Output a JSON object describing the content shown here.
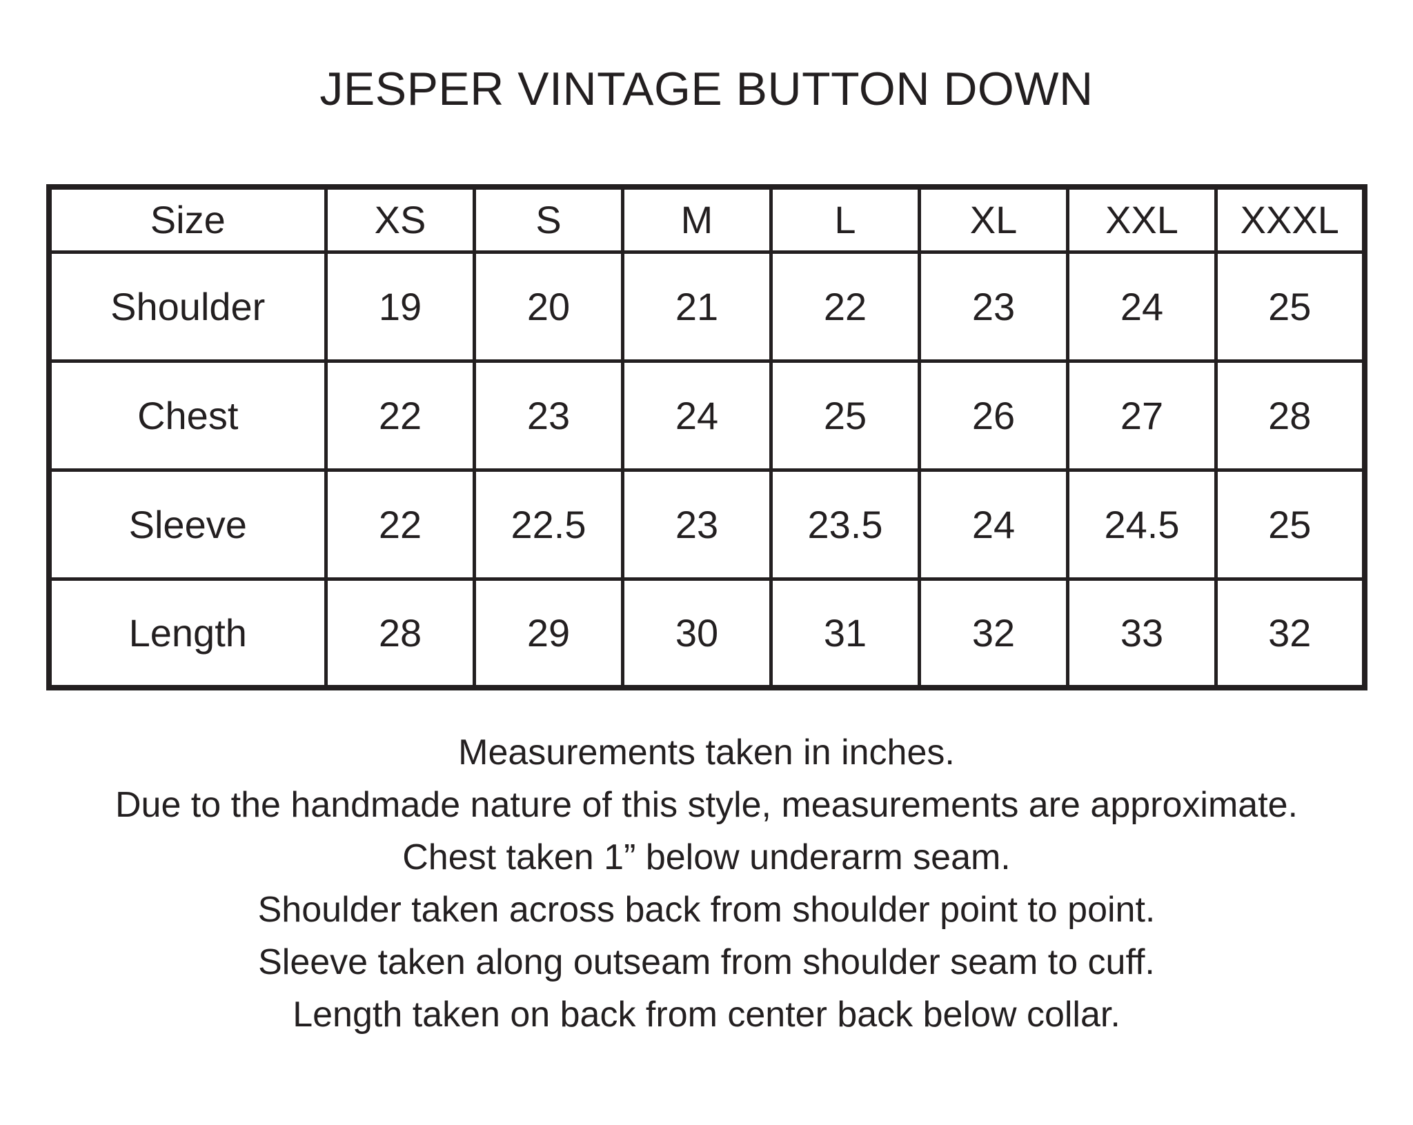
{
  "title": "JESPER VINTAGE BUTTON DOWN",
  "table": {
    "header": [
      "Size",
      "XS",
      "S",
      "M",
      "L",
      "XL",
      "XXL",
      "XXXL"
    ],
    "rows": [
      {
        "label": "Shoulder",
        "values": [
          "19",
          "20",
          "21",
          "22",
          "23",
          "24",
          "25"
        ]
      },
      {
        "label": "Chest",
        "values": [
          "22",
          "23",
          "24",
          "25",
          "26",
          "27",
          "28"
        ]
      },
      {
        "label": "Sleeve",
        "values": [
          "22",
          "22.5",
          "23",
          "23.5",
          "24",
          "24.5",
          "25"
        ]
      },
      {
        "label": "Length",
        "values": [
          "28",
          "29",
          "30",
          "31",
          "32",
          "33",
          "32"
        ]
      }
    ]
  },
  "notes": [
    "Measurements taken in inches.",
    "Due to the handmade nature of this style, measurements are approximate.",
    "Chest taken 1” below underarm seam.",
    "Shoulder taken across back from shoulder point to point.",
    "Sleeve taken along outseam from shoulder seam to cuff.",
    "Length taken on back from center back below collar."
  ],
  "colors": {
    "background": "#ffffff",
    "text": "#231f20",
    "table_border": "#231f20"
  }
}
